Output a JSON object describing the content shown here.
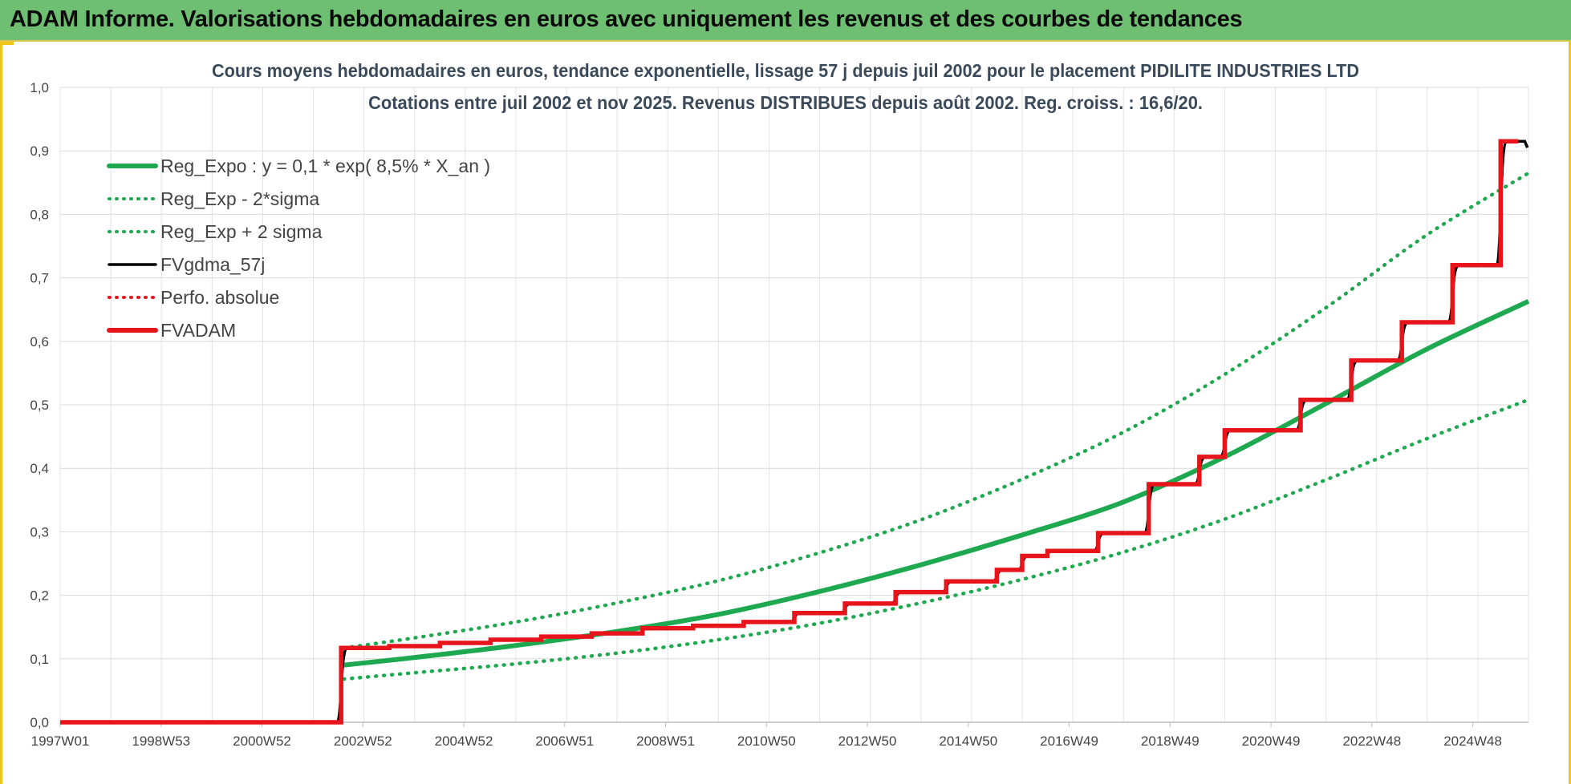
{
  "header": {
    "title": "ADAM Informe. Valorisations hebdomadaires en euros avec uniquement les revenus et des courbes de tendances"
  },
  "colors": {
    "header_bg": "#6fbf73",
    "accent_border": "#f0c419",
    "trend_green": "#1ea84f",
    "fvgdma_black": "#000000",
    "fvadam_red": "#e8141c",
    "title_text": "#3b4a5a"
  },
  "chart_data": {
    "type": "line",
    "title_line1": "Cours moyens hebdomadaires en euros, tendance exponentielle, lissage 57 j depuis juil 2002 pour le placement PIDILITE INDUSTRIES LTD",
    "title_line2": "Cotations entre juil 2002 et nov 2025. Revenus DISTRIBUES depuis août 2002. Reg. croiss. : 16,6/20.",
    "xlabel": "",
    "ylabel": "",
    "x_ticks": [
      "1997W01",
      "1998W53",
      "2000W52",
      "2002W52",
      "2004W52",
      "2006W51",
      "2008W51",
      "2010W50",
      "2012W50",
      "2014W50",
      "2016W49",
      "2018W49",
      "2020W49",
      "2022W48",
      "2024W48"
    ],
    "x_range": [
      1997.0,
      2026.0
    ],
    "y_ticks": [
      "0,0",
      "0,1",
      "0,2",
      "0,3",
      "0,4",
      "0,5",
      "0,6",
      "0,7",
      "0,8",
      "0,9",
      "1,0"
    ],
    "ylim": [
      0,
      1.0
    ],
    "grid": true,
    "legend_position": "top-left",
    "legend": [
      {
        "label": "Reg_Expo : y = 0,1 * exp( 8,5% *  X_an )",
        "style": "solid-thick",
        "color": "#1ea84f"
      },
      {
        "label": "Reg_Exp - 2*sigma",
        "style": "dotted",
        "color": "#1ea84f"
      },
      {
        "label": "Reg_Exp + 2 sigma",
        "style": "dotted",
        "color": "#1ea84f"
      },
      {
        "label": "FVgdma_57j",
        "style": "solid",
        "color": "#000000"
      },
      {
        "label": "Perfo. absolue",
        "style": "dotted",
        "color": "#e8141c"
      },
      {
        "label": "FVADAM",
        "style": "solid-thick",
        "color": "#e8141c"
      }
    ],
    "series": [
      {
        "name": "Reg_Expo : y = 0,1 * exp( 8,5% *  X_an )",
        "x": [
          2002.6,
          2004,
          2006,
          2008,
          2010,
          2012,
          2014,
          2016,
          2018,
          2020,
          2022,
          2024,
          2026
        ],
        "y": [
          0.09,
          0.102,
          0.121,
          0.143,
          0.17,
          0.206,
          0.248,
          0.295,
          0.347,
          0.418,
          0.502,
          0.588,
          0.663
        ]
      },
      {
        "name": "Reg_Exp - 2*sigma",
        "x": [
          2002.6,
          2004,
          2006,
          2008,
          2010,
          2012,
          2014,
          2016,
          2018,
          2020,
          2022,
          2024,
          2026
        ],
        "y": [
          0.068,
          0.078,
          0.092,
          0.109,
          0.13,
          0.156,
          0.188,
          0.225,
          0.268,
          0.32,
          0.382,
          0.447,
          0.508
        ]
      },
      {
        "name": "Reg_Exp + 2 sigma",
        "x": [
          2002.6,
          2004,
          2006,
          2008,
          2010,
          2012,
          2014,
          2016,
          2018,
          2020,
          2022,
          2024,
          2026
        ],
        "y": [
          0.117,
          0.133,
          0.158,
          0.188,
          0.223,
          0.267,
          0.319,
          0.383,
          0.457,
          0.548,
          0.653,
          0.768,
          0.865
        ]
      },
      {
        "name": "FVgdma_57j",
        "x": [
          1997.0,
          2002.45,
          2002.55,
          2003.5,
          2004.5,
          2005.5,
          2006.5,
          2007.5,
          2008.5,
          2009.5,
          2010.5,
          2011.5,
          2012.5,
          2013.5,
          2014.5,
          2015.5,
          2016.3,
          2017.3,
          2018.0,
          2019.0,
          2019.9,
          2020.9,
          2021.9,
          2022.9,
          2023.9,
          2024.9,
          2025.5,
          2025.9
        ],
        "y": [
          0.0,
          0.0,
          0.117,
          0.12,
          0.124,
          0.128,
          0.132,
          0.137,
          0.142,
          0.148,
          0.155,
          0.164,
          0.176,
          0.19,
          0.205,
          0.222,
          0.247,
          0.268,
          0.29,
          0.35,
          0.405,
          0.455,
          0.49,
          0.555,
          0.615,
          0.69,
          0.8,
          0.9
        ]
      },
      {
        "name": "FVADAM",
        "steps": [
          {
            "x": 1997.0,
            "y": 0.0
          },
          {
            "x": 2002.55,
            "y": 0.117
          },
          {
            "x": 2003.5,
            "y": 0.12
          },
          {
            "x": 2004.5,
            "y": 0.125
          },
          {
            "x": 2005.5,
            "y": 0.13
          },
          {
            "x": 2006.5,
            "y": 0.135
          },
          {
            "x": 2007.5,
            "y": 0.14
          },
          {
            "x": 2008.5,
            "y": 0.148
          },
          {
            "x": 2009.5,
            "y": 0.152
          },
          {
            "x": 2010.5,
            "y": 0.158
          },
          {
            "x": 2011.5,
            "y": 0.172
          },
          {
            "x": 2012.5,
            "y": 0.187
          },
          {
            "x": 2013.5,
            "y": 0.205
          },
          {
            "x": 2014.5,
            "y": 0.222
          },
          {
            "x": 2015.5,
            "y": 0.24
          },
          {
            "x": 2016.0,
            "y": 0.262
          },
          {
            "x": 2016.5,
            "y": 0.27
          },
          {
            "x": 2017.5,
            "y": 0.298
          },
          {
            "x": 2018.5,
            "y": 0.375
          },
          {
            "x": 2019.5,
            "y": 0.418
          },
          {
            "x": 2020.0,
            "y": 0.46
          },
          {
            "x": 2021.5,
            "y": 0.508
          },
          {
            "x": 2022.5,
            "y": 0.57
          },
          {
            "x": 2023.5,
            "y": 0.63
          },
          {
            "x": 2024.5,
            "y": 0.72
          },
          {
            "x": 2025.45,
            "y": 0.915
          },
          {
            "x": 2025.8,
            "y": 0.915
          }
        ]
      }
    ]
  }
}
